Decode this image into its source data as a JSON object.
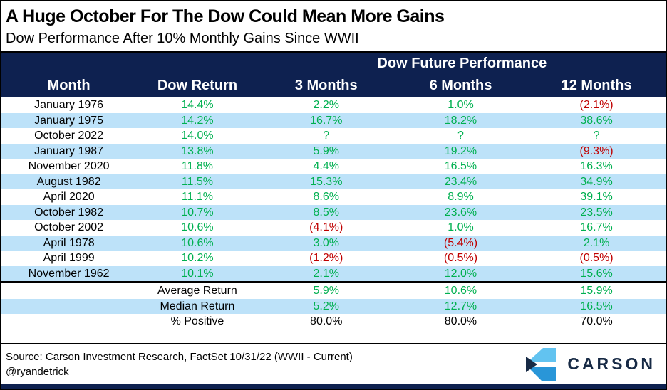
{
  "header": {
    "title": "A Huge October For The Dow Could Mean More Gains",
    "subtitle": "Dow Performance After 10% Monthly Gains Since WWII"
  },
  "chart_data": {
    "type": "table",
    "group_header": "Dow Future Performance",
    "group_header_span": "last 3 columns",
    "columns": [
      "Month",
      "Dow Return",
      "3 Months",
      "6 Months",
      "12 Months"
    ],
    "rows": [
      [
        "January 1976",
        "14.4%",
        "2.2%",
        "1.0%",
        "(2.1%)"
      ],
      [
        "January 1975",
        "14.2%",
        "16.7%",
        "18.2%",
        "38.6%"
      ],
      [
        "October 2022",
        "14.0%",
        "?",
        "?",
        "?"
      ],
      [
        "January 1987",
        "13.8%",
        "5.9%",
        "19.2%",
        "(9.3%)"
      ],
      [
        "November 2020",
        "11.8%",
        "4.4%",
        "16.5%",
        "16.3%"
      ],
      [
        "August 1982",
        "11.5%",
        "15.3%",
        "23.4%",
        "34.9%"
      ],
      [
        "April 2020",
        "11.1%",
        "8.6%",
        "8.9%",
        "39.1%"
      ],
      [
        "October 1982",
        "10.7%",
        "8.5%",
        "23.6%",
        "23.5%"
      ],
      [
        "October 2002",
        "10.6%",
        "(4.1%)",
        "1.0%",
        "16.7%"
      ],
      [
        "April 1978",
        "10.6%",
        "3.0%",
        "(5.4%)",
        "2.1%"
      ],
      [
        "April 1999",
        "10.2%",
        "(1.2%)",
        "(0.5%)",
        "(0.5%)"
      ],
      [
        "November 1962",
        "10.1%",
        "2.1%",
        "12.0%",
        "15.6%"
      ]
    ],
    "summary": [
      {
        "label": "Average Return",
        "values": [
          "5.9%",
          "10.6%",
          "15.9%"
        ],
        "plain": false
      },
      {
        "label": "Median Return",
        "values": [
          "5.2%",
          "12.7%",
          "16.5%"
        ],
        "plain": false
      },
      {
        "label": "% Positive",
        "values": [
          "80.0%",
          "80.0%",
          "70.0%"
        ],
        "plain": true
      }
    ],
    "value_convention": "parentheses = negative (red), others positive (green), ? = unknown future value"
  },
  "footer": {
    "source": "Source: Carson Investment Research, FactSet 10/31/22 (WWII - Current)",
    "handle": "@ryandetrick",
    "logo_text": "CARSON"
  },
  "colors": {
    "header_navy": "#0E2150",
    "row_alt_blue": "#BDE2F9",
    "positive_green": "#00B050",
    "negative_red": "#C00000",
    "logo_light_blue": "#62C3F0",
    "logo_blue": "#2996D8",
    "logo_navy": "#172A45"
  }
}
